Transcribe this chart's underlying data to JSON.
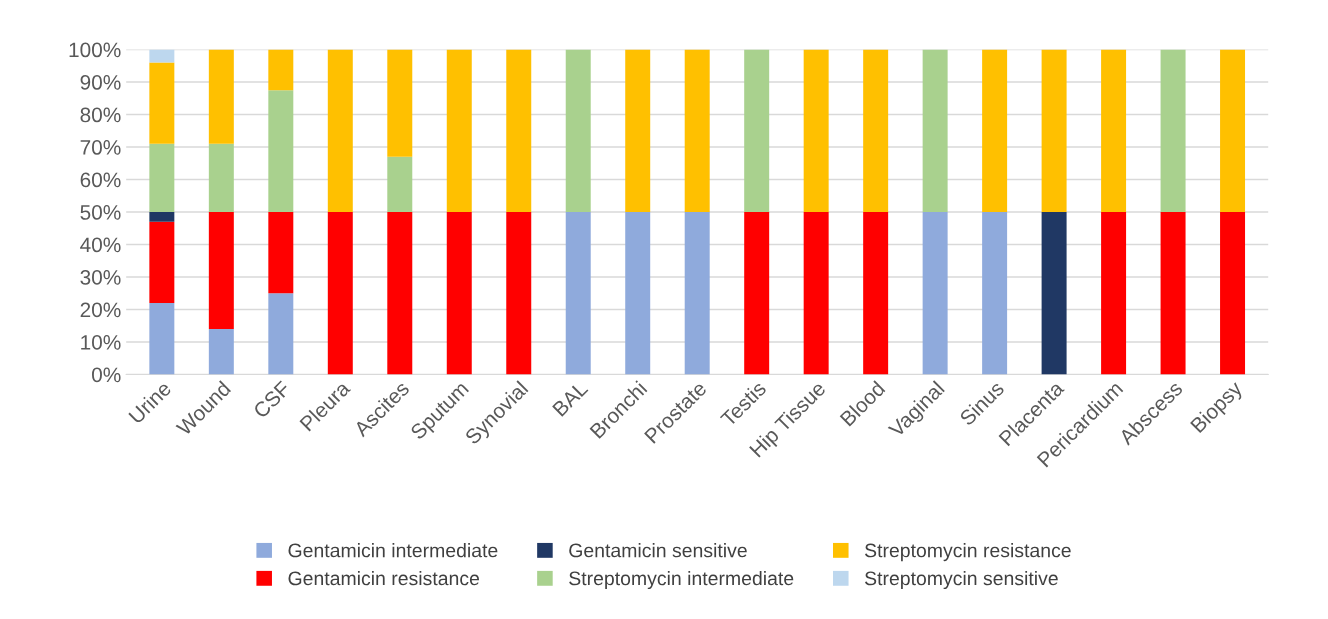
{
  "chart_data": {
    "type": "bar",
    "stacked": true,
    "categories": [
      "Urine",
      "Wound",
      "CSF",
      "Pleura",
      "Ascites",
      "Sputum",
      "Synovial",
      "BAL",
      "Bronchi",
      "Prostate",
      "Testis",
      "Hip Tissue",
      "Blood",
      "Vaginal",
      "Sinus",
      "Placenta",
      "Pericardium",
      "Abscess",
      "Biopsy"
    ],
    "series": [
      {
        "name": "Gentamicin intermediate",
        "color": "#8faadc",
        "values": [
          22,
          14,
          25,
          0,
          0,
          0,
          0,
          50,
          50,
          50,
          0,
          0,
          0,
          50,
          50,
          0,
          0,
          0,
          0
        ]
      },
      {
        "name": "Gentamicin resistance",
        "color": "#ff0000",
        "values": [
          25,
          36,
          25,
          50,
          50,
          50,
          50,
          0,
          0,
          0,
          50,
          50,
          50,
          0,
          0,
          0,
          50,
          50,
          50
        ]
      },
      {
        "name": "Gentamicin sensitive",
        "color": "#203864",
        "values": [
          3,
          0,
          0,
          0,
          0,
          0,
          0,
          0,
          0,
          0,
          0,
          0,
          0,
          0,
          0,
          50,
          0,
          0,
          0
        ]
      },
      {
        "name": "Streptomycin intermediate",
        "color": "#a9d18e",
        "values": [
          21,
          21,
          37.5,
          0,
          17,
          0,
          0,
          50,
          0,
          0,
          50,
          0,
          0,
          50,
          0,
          0,
          0,
          50,
          0
        ]
      },
      {
        "name": "Streptomycin resistance",
        "color": "#ffc000",
        "values": [
          25,
          29,
          12.5,
          50,
          33,
          50,
          50,
          0,
          50,
          50,
          0,
          50,
          50,
          0,
          50,
          50,
          50,
          0,
          50
        ]
      },
      {
        "name": "Streptomycin sensitive",
        "color": "#bdd7ee",
        "values": [
          4,
          0,
          0,
          0,
          0,
          0,
          0,
          0,
          0,
          0,
          0,
          0,
          0,
          0,
          0,
          0,
          0,
          0,
          0
        ]
      }
    ],
    "ylim": [
      0,
      100
    ],
    "yticks": [
      {
        "value": 0,
        "label": "0%"
      },
      {
        "value": 10,
        "label": "10%"
      },
      {
        "value": 20,
        "label": "20%"
      },
      {
        "value": 30,
        "label": "30%"
      },
      {
        "value": 40,
        "label": "40%"
      },
      {
        "value": 50,
        "label": "50%"
      },
      {
        "value": 60,
        "label": "60%"
      },
      {
        "value": 70,
        "label": "70%"
      },
      {
        "value": 80,
        "label": "80%"
      },
      {
        "value": 90,
        "label": "90%"
      },
      {
        "value": 100,
        "label": "100%"
      }
    ],
    "grid": "y",
    "legend": "bottom"
  }
}
